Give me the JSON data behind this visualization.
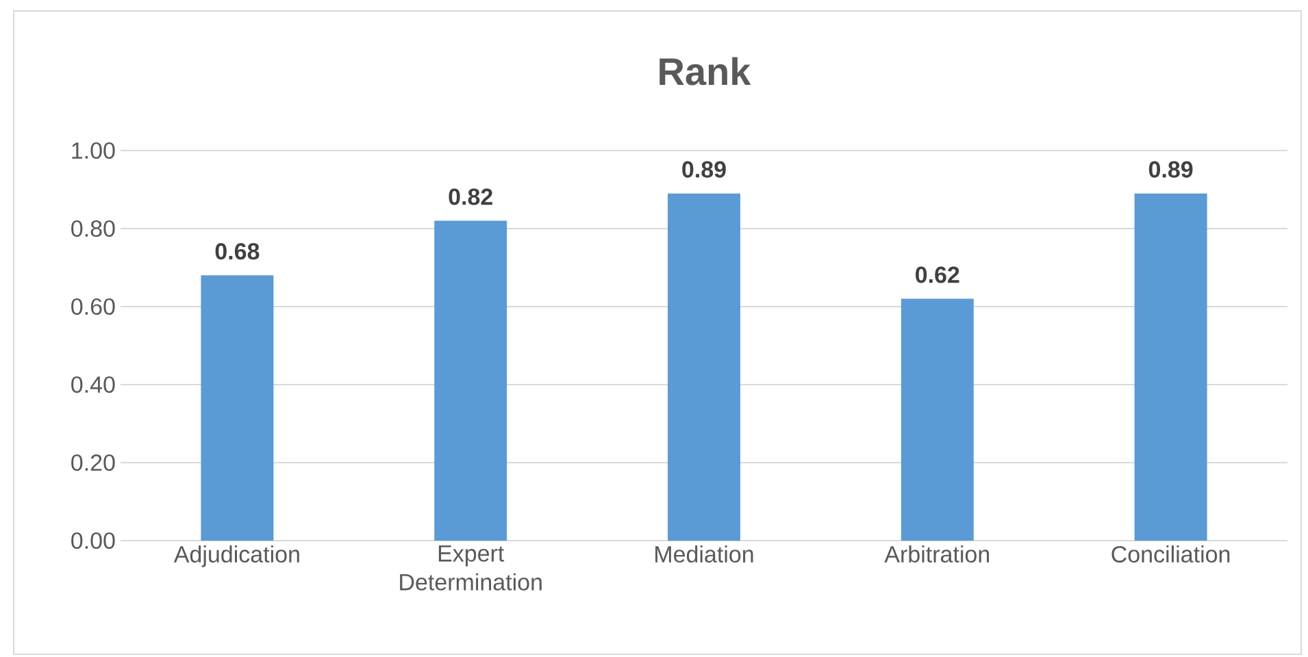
{
  "chart_data": {
    "type": "bar",
    "title": "Rank",
    "categories": [
      "Adjudication",
      "Expert Determination",
      "Mediation",
      "Arbitration",
      "Conciliation"
    ],
    "values": [
      0.68,
      0.82,
      0.89,
      0.62,
      0.89
    ],
    "color": "#5b9bd5",
    "ylim": [
      0,
      1
    ],
    "yticks": [
      {
        "value": 0,
        "label": "0.00"
      },
      {
        "value": 0.2,
        "label": "0.20"
      },
      {
        "value": 0.4,
        "label": "0.40"
      },
      {
        "value": 0.6,
        "label": "0.60"
      },
      {
        "value": 0.8,
        "label": "0.80"
      },
      {
        "value": 1,
        "label": "1.00"
      }
    ],
    "grid": "y",
    "data_labels": true
  }
}
